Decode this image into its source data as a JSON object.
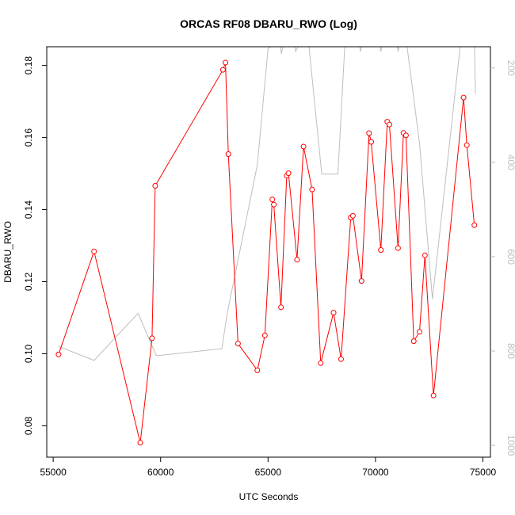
{
  "chart_data": {
    "type": "line",
    "title": "ORCAS RF08 DBARU_RWO (Log)",
    "xlabel": "UTC Seconds",
    "ylabel": "DBARU_RWO",
    "xlim": [
      54700,
      75350
    ],
    "ylim": [
      0.0713,
      0.1852
    ],
    "x_ticks": [
      55000,
      60000,
      65000,
      70000,
      75000
    ],
    "x_tick_labels": [
      "55000",
      "60000",
      "65000",
      "70000",
      "75000"
    ],
    "y_ticks": [
      0.08,
      0.1,
      0.12,
      0.14,
      0.16,
      0.18
    ],
    "y_tick_labels": [
      "0.08",
      "0.10",
      "0.12",
      "0.14",
      "0.16",
      "0.18"
    ],
    "y2lim": [
      1025,
      155
    ],
    "y2_ticks": [
      200,
      400,
      600,
      800,
      1000
    ],
    "y2_tick_labels": [
      "200",
      "400",
      "600",
      "800",
      "1000"
    ],
    "series": [
      {
        "color": "#ff0000",
        "axis": "left",
        "marker": "open-circle",
        "x": [
          55250,
          56900,
          59050,
          59600,
          59750,
          62900,
          63020,
          63150,
          63600,
          64500,
          64850,
          65200,
          65270,
          65600,
          65870,
          65950,
          66350,
          66650,
          67050,
          67450,
          68050,
          68400,
          68850,
          68950,
          69350,
          69700,
          69800,
          70250,
          70550,
          70650,
          71050,
          71300,
          71420,
          71780,
          72050,
          72300,
          72700,
          74100,
          74250,
          74600
        ],
        "y": [
          0.0998,
          0.1284,
          0.0753,
          0.1043,
          0.1466,
          0.1788,
          0.1808,
          0.1554,
          0.1028,
          0.0954,
          0.1051,
          0.1428,
          0.1414,
          0.1129,
          0.1494,
          0.1501,
          0.1261,
          0.1575,
          0.1456,
          0.0974,
          0.1114,
          0.0985,
          0.1378,
          0.1383,
          0.1202,
          0.1612,
          0.1588,
          0.1288,
          0.1644,
          0.1636,
          0.1293,
          0.1613,
          0.1606,
          0.1035,
          0.1061,
          0.1273,
          0.0884,
          0.1711,
          0.1579,
          0.1357
        ]
      },
      {
        "color": "#bebebe",
        "axis": "right",
        "marker": "none",
        "x": [
          55250,
          56900,
          58950,
          59800,
          62850,
          63100,
          64500,
          65000,
          65550,
          65620,
          65800,
          66200,
          66280,
          66650,
          66850,
          67500,
          68000,
          68250,
          68600,
          68800,
          69200,
          69300,
          69450,
          70100,
          70250,
          70400,
          70950,
          71050,
          71200,
          71400,
          72050,
          72650,
          74000,
          74200,
          74600,
          74650
        ],
        "y": [
          790,
          820,
          720,
          810,
          795,
          720,
          405,
          160,
          135,
          170,
          130,
          135,
          165,
          135,
          130,
          425,
          425,
          425,
          130,
          130,
          135,
          165,
          130,
          130,
          165,
          130,
          130,
          165,
          130,
          130,
          360,
          690,
          130,
          130,
          130,
          255
        ]
      }
    ]
  }
}
